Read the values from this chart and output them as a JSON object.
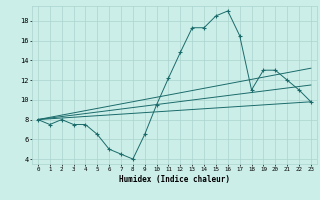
{
  "title": "",
  "xlabel": "Humidex (Indice chaleur)",
  "background_color": "#cceee8",
  "grid_color": "#aad4ce",
  "line_color": "#1a6b6b",
  "xlim": [
    -0.5,
    23.5
  ],
  "ylim": [
    3.5,
    19.5
  ],
  "xticks": [
    0,
    1,
    2,
    3,
    4,
    5,
    6,
    7,
    8,
    9,
    10,
    11,
    12,
    13,
    14,
    15,
    16,
    17,
    18,
    19,
    20,
    21,
    22,
    23
  ],
  "yticks": [
    4,
    6,
    8,
    10,
    12,
    14,
    16,
    18
  ],
  "series1_x": [
    0,
    1,
    2,
    3,
    4,
    5,
    6,
    7,
    8,
    9,
    10,
    11,
    12,
    13,
    14,
    15,
    16,
    17,
    18,
    19,
    20,
    21,
    22,
    23
  ],
  "series1_y": [
    8.0,
    7.5,
    8.0,
    7.5,
    7.5,
    6.5,
    5.0,
    4.5,
    4.0,
    6.5,
    9.5,
    12.2,
    14.8,
    17.3,
    17.3,
    18.5,
    19.0,
    16.5,
    11.0,
    13.0,
    13.0,
    12.0,
    11.0,
    9.8
  ],
  "series2_x": [
    0,
    23
  ],
  "series2_y": [
    8.0,
    9.8
  ],
  "series3_x": [
    0,
    23
  ],
  "series3_y": [
    8.0,
    11.5
  ],
  "series4_x": [
    0,
    23
  ],
  "series4_y": [
    8.0,
    13.2
  ]
}
